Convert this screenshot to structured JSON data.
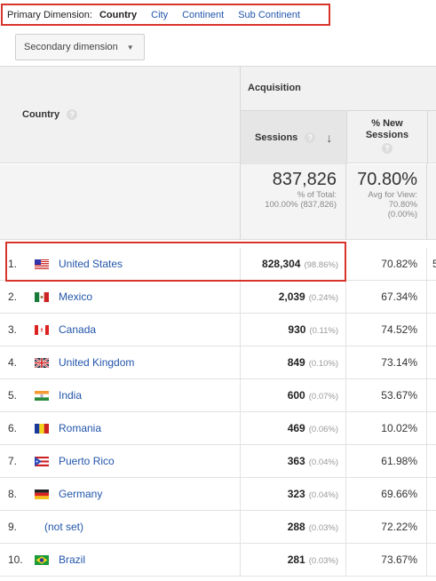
{
  "dimension_bar": {
    "label": "Primary Dimension:",
    "active": "Country",
    "options": [
      "City",
      "Continent",
      "Sub Continent"
    ]
  },
  "secondary_dimension": {
    "label": "Secondary dimension"
  },
  "header": {
    "country": "Country",
    "acquisition": "Acquisition",
    "sessions": "Sessions",
    "new_sessions_line1": "% New",
    "new_sessions_line2": "Sessions"
  },
  "totals": {
    "sessions": "837,826",
    "sessions_sub1": "% of Total:",
    "sessions_sub2": "100.00% (837,826)",
    "new": "70.80%",
    "new_sub1": "Avg for View:",
    "new_sub2": "70.80%",
    "new_sub3": "(0.00%)"
  },
  "rows": [
    {
      "num": "1.",
      "flag": "us",
      "country": "United States",
      "sessions": "828,304",
      "pct": "(98.86%)",
      "new": "70.82%",
      "edge": "5"
    },
    {
      "num": "2.",
      "flag": "mx",
      "country": "Mexico",
      "sessions": "2,039",
      "pct": "(0.24%)",
      "new": "67.34%"
    },
    {
      "num": "3.",
      "flag": "ca",
      "country": "Canada",
      "sessions": "930",
      "pct": "(0.11%)",
      "new": "74.52%"
    },
    {
      "num": "4.",
      "flag": "gb",
      "country": "United Kingdom",
      "sessions": "849",
      "pct": "(0.10%)",
      "new": "73.14%"
    },
    {
      "num": "5.",
      "flag": "in",
      "country": "India",
      "sessions": "600",
      "pct": "(0.07%)",
      "new": "53.67%"
    },
    {
      "num": "6.",
      "flag": "ro",
      "country": "Romania",
      "sessions": "469",
      "pct": "(0.06%)",
      "new": "10.02%"
    },
    {
      "num": "7.",
      "flag": "pr",
      "country": "Puerto Rico",
      "sessions": "363",
      "pct": "(0.04%)",
      "new": "61.98%"
    },
    {
      "num": "8.",
      "flag": "de",
      "country": "Germany",
      "sessions": "323",
      "pct": "(0.04%)",
      "new": "69.66%"
    },
    {
      "num": "9.",
      "flag": "",
      "country": "(not set)",
      "sessions": "288",
      "pct": "(0.03%)",
      "new": "72.22%"
    },
    {
      "num": "10.",
      "flag": "br",
      "country": "Brazil",
      "sessions": "281",
      "pct": "(0.03%)",
      "new": "73.67%"
    }
  ],
  "colors": {
    "highlight": "#d9342b",
    "link": "#2255aa"
  }
}
